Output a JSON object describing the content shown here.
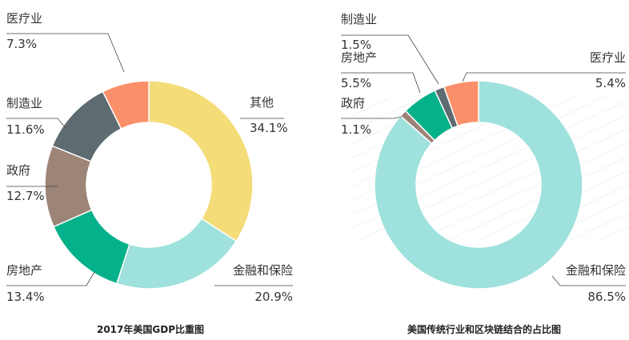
{
  "chart_data": [
    {
      "type": "pie",
      "title": "2017年美国GDP比重图",
      "slices": [
        {
          "label": "其他",
          "value": 34.1,
          "value_text": "34.1%",
          "color": "#F4DC78"
        },
        {
          "label": "金融和保险",
          "value": 20.9,
          "value_text": "20.9%",
          "color": "#9FE1DC"
        },
        {
          "label": "房地产",
          "value": 13.4,
          "value_text": "13.4%",
          "color": "#05B18A"
        },
        {
          "label": "政府",
          "value": 12.7,
          "value_text": "12.7%",
          "color": "#9C8477"
        },
        {
          "label": "制造业",
          "value": 11.6,
          "value_text": "11.6%",
          "color": "#5E6B70"
        },
        {
          "label": "医疗业",
          "value": 7.3,
          "value_text": "7.3%",
          "color": "#FB8F6A"
        }
      ]
    },
    {
      "type": "pie",
      "title": "美国传统行业和区块链结合的占比图",
      "slices": [
        {
          "label": "金融和保险",
          "value": 86.5,
          "value_text": "86.5%",
          "color": "#9FE1DC"
        },
        {
          "label": "政府",
          "value": 1.1,
          "value_text": "1.1%",
          "color": "#9C8477"
        },
        {
          "label": "房地产",
          "value": 5.5,
          "value_text": "5.5%",
          "color": "#05B18A"
        },
        {
          "label": "制造业",
          "value": 1.5,
          "value_text": "1.5%",
          "color": "#5E6B70"
        },
        {
          "label": "医疗业",
          "value": 5.4,
          "value_text": "5.4%",
          "color": "#FB8F6A"
        }
      ]
    }
  ]
}
